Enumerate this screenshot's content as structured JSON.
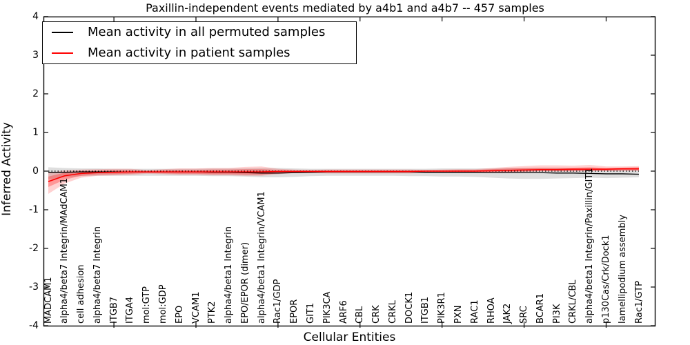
{
  "figure": {
    "title": "Paxillin-independent events mediated by a4b1 and a4b7 -- 457 samples"
  },
  "legend": {
    "items": [
      {
        "label": "Mean activity in all permuted samples",
        "color": "#000000"
      },
      {
        "label": "Mean activity in patient samples",
        "color": "#ff0000"
      }
    ]
  },
  "chart_data": {
    "type": "line",
    "title": "Paxillin-independent events mediated by a4b1 and a4b7 -- 457 samples",
    "xlabel": "Cellular Entities",
    "ylabel": "Inferred Activity",
    "ylim": [
      -4,
      4
    ],
    "yticks": [
      4,
      3,
      2,
      1,
      0,
      -1,
      -2,
      -3,
      -4
    ],
    "x_major_ticks": [
      5,
      10,
      15,
      20,
      25,
      30,
      35
    ],
    "grid": false,
    "legend_position": "upper left",
    "zero_line": {
      "value": 0,
      "style": "dotted",
      "color": "#000000"
    },
    "categories": [
      "MADCAM1",
      "alpha4/beta7 Integrin/MAdCAM1",
      "cell adhesion",
      "alpha4/beta7 Integrin",
      "ITGB7",
      "ITGA4",
      "mol:GTP",
      "mol:GDP",
      "EPO",
      "VCAM1",
      "PTK2",
      "alpha4/beta1 Integrin",
      "EPO/EPOR (dimer)",
      "alpha4/beta1 Integrin/VCAM1",
      "Rac1/GDP",
      "EPOR",
      "GIT1",
      "PIK3CA",
      "ARF6",
      "CBL",
      "CRK",
      "CRKL",
      "DOCK1",
      "ITGB1",
      "PIK3R1",
      "PXN",
      "RAC1",
      "RHOA",
      "JAK2",
      "SRC",
      "BCAR1",
      "PI3K",
      "CRKL/CBL",
      "alpha4/beta1 Integrin/Paxillin/GIT1",
      "p130Cas/Crk/Dock1",
      "lamellipodium assembly",
      "Rac1/GTP"
    ],
    "series": [
      {
        "name": "Mean activity in all permuted samples",
        "color": "#000000",
        "line_width": 1.3,
        "values": [
          -0.03,
          -0.03,
          -0.02,
          -0.02,
          -0.02,
          -0.02,
          -0.02,
          -0.02,
          -0.02,
          -0.02,
          -0.03,
          -0.03,
          -0.04,
          -0.05,
          -0.05,
          -0.04,
          -0.03,
          -0.02,
          -0.02,
          -0.02,
          -0.02,
          -0.02,
          -0.02,
          -0.03,
          -0.03,
          -0.03,
          -0.03,
          -0.04,
          -0.04,
          -0.04,
          -0.04,
          -0.05,
          -0.05,
          -0.06,
          -0.07,
          -0.07,
          -0.08
        ]
      },
      {
        "name": "Mean activity in patient samples",
        "color": "#ff0000",
        "line_width": 1.6,
        "values": [
          -0.27,
          -0.12,
          -0.06,
          -0.04,
          -0.03,
          -0.02,
          -0.02,
          -0.02,
          -0.02,
          -0.02,
          -0.02,
          -0.02,
          -0.02,
          -0.02,
          -0.01,
          -0.01,
          -0.01,
          -0.01,
          -0.01,
          -0.01,
          -0.01,
          -0.01,
          -0.01,
          0.0,
          0.0,
          0.0,
          0.0,
          0.01,
          0.02,
          0.03,
          0.04,
          0.04,
          0.05,
          0.05,
          0.05,
          0.06,
          0.06
        ]
      }
    ],
    "bands": [
      {
        "name": "permuted-spread-band",
        "color": "rgba(0,0,0,0.13)",
        "upper": [
          0.1,
          0.08,
          0.07,
          0.07,
          0.06,
          0.06,
          0.06,
          0.06,
          0.06,
          0.06,
          0.07,
          0.07,
          0.07,
          0.08,
          0.08,
          0.07,
          0.06,
          0.06,
          0.06,
          0.06,
          0.06,
          0.06,
          0.06,
          0.06,
          0.07,
          0.07,
          0.07,
          0.07,
          0.08,
          0.08,
          0.08,
          0.08,
          0.07,
          0.07,
          0.06,
          0.06,
          0.05
        ],
        "lower": [
          -0.21,
          -0.16,
          -0.13,
          -0.12,
          -0.12,
          -0.12,
          -0.12,
          -0.12,
          -0.12,
          -0.12,
          -0.13,
          -0.13,
          -0.14,
          -0.16,
          -0.16,
          -0.15,
          -0.13,
          -0.12,
          -0.12,
          -0.12,
          -0.12,
          -0.12,
          -0.13,
          -0.13,
          -0.14,
          -0.14,
          -0.15,
          -0.17,
          -0.19,
          -0.2,
          -0.2,
          -0.19,
          -0.18,
          -0.17,
          -0.18,
          -0.17,
          -0.16
        ]
      },
      {
        "name": "patient-outer-band",
        "color": "rgba(255,0,0,0.18)",
        "upper": [
          -0.05,
          0.02,
          0.04,
          0.05,
          0.06,
          0.06,
          0.03,
          0.05,
          0.07,
          0.07,
          0.08,
          0.08,
          0.11,
          0.12,
          0.06,
          0.04,
          0.03,
          0.04,
          0.04,
          0.04,
          0.04,
          0.04,
          0.04,
          0.03,
          0.04,
          0.05,
          0.05,
          0.08,
          0.11,
          0.13,
          0.15,
          0.15,
          0.14,
          0.16,
          0.12,
          0.12,
          0.13
        ],
        "lower": [
          -0.59,
          -0.32,
          -0.17,
          -0.12,
          -0.11,
          -0.1,
          -0.07,
          -0.08,
          -0.1,
          -0.1,
          -0.11,
          -0.11,
          -0.12,
          -0.12,
          -0.08,
          -0.05,
          -0.05,
          -0.06,
          -0.06,
          -0.06,
          -0.06,
          -0.06,
          -0.06,
          -0.05,
          -0.05,
          -0.05,
          -0.05,
          -0.04,
          -0.03,
          -0.02,
          -0.01,
          -0.01,
          -0.01,
          0.0,
          0.0,
          0.01,
          0.01
        ]
      },
      {
        "name": "patient-inner-band",
        "color": "rgba(255,0,0,0.28)",
        "upper": [
          -0.14,
          -0.04,
          0.0,
          0.01,
          0.02,
          0.02,
          0.01,
          0.02,
          0.03,
          0.03,
          0.04,
          0.04,
          0.05,
          0.05,
          0.03,
          0.02,
          0.02,
          0.02,
          0.02,
          0.02,
          0.02,
          0.02,
          0.02,
          0.02,
          0.02,
          0.03,
          0.03,
          0.05,
          0.07,
          0.08,
          0.09,
          0.09,
          0.09,
          0.1,
          0.08,
          0.09,
          0.1
        ],
        "lower": [
          -0.41,
          -0.22,
          -0.12,
          -0.09,
          -0.08,
          -0.07,
          -0.05,
          -0.06,
          -0.07,
          -0.07,
          -0.08,
          -0.08,
          -0.09,
          -0.09,
          -0.06,
          -0.04,
          -0.04,
          -0.04,
          -0.04,
          -0.04,
          -0.04,
          -0.04,
          -0.04,
          -0.03,
          -0.03,
          -0.03,
          -0.03,
          -0.02,
          -0.02,
          -0.01,
          0.0,
          0.0,
          0.0,
          0.01,
          0.01,
          0.02,
          0.02
        ]
      }
    ]
  }
}
